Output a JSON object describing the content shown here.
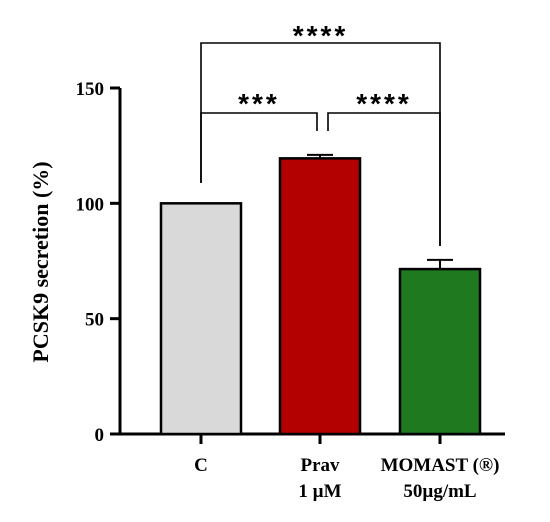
{
  "chart_data": {
    "type": "bar",
    "categories": [
      [
        "C"
      ],
      [
        "Prav",
        "1 µM"
      ],
      [
        "MOMAST (®)",
        "50µg/mL"
      ]
    ],
    "values": [
      100,
      119.5,
      71.5
    ],
    "errors": [
      0,
      1.5,
      4
    ],
    "colors": [
      "#d9d9d9",
      "#b30000",
      "#1f7a1f"
    ],
    "ylabel": "PCSK9 secretion (%)",
    "ylim": [
      0,
      150
    ],
    "yticks": [
      0,
      50,
      100,
      150
    ],
    "significance": [
      {
        "from": 0,
        "to": 1,
        "label": "***"
      },
      {
        "from": 1,
        "to": 2,
        "label": "****"
      },
      {
        "from": 0,
        "to": 2,
        "label": "****"
      }
    ]
  }
}
